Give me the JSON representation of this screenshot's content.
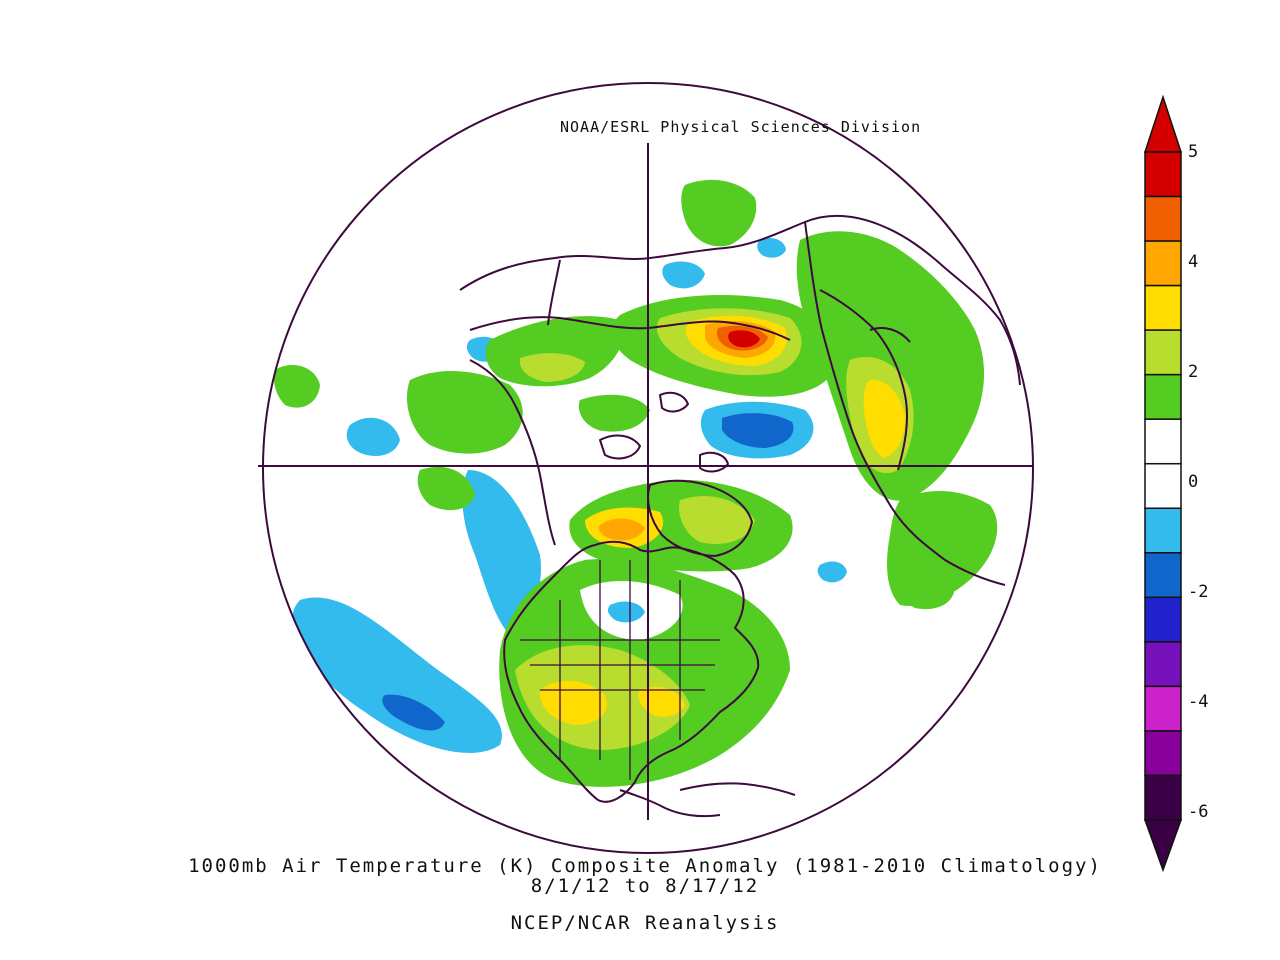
{
  "credit": "NOAA/ESRL Physical Sciences Division",
  "caption": {
    "line1": "1000mb Air Temperature (K) Composite Anomaly (1981-2010 Climatology)",
    "line2": "8/1/12 to 8/17/12",
    "line3": "NCEP/NCAR Reanalysis"
  },
  "colorbar": {
    "labels": [
      "5",
      "4",
      "2",
      "0",
      "-2",
      "-4",
      "-6"
    ],
    "colors": [
      "#d40000",
      "#f06000",
      "#ffa600",
      "#ffdd00",
      "#b8dd2e",
      "#55cc22",
      "#ffffff",
      "#ffffff",
      "#33bbee",
      "#1166cc",
      "#2222cc",
      "#7711bb",
      "#cc22cc",
      "#880099",
      "#3a0045"
    ]
  },
  "map": {
    "projection": "polar-stereographic",
    "land_outline_color": "#3d0a3d",
    "anomaly_colors": {
      "warm_strong": "#d40000",
      "warm_high": "#f06000",
      "warm_mid": "#ffa600",
      "warm_low": "#ffdd00",
      "warm_lower": "#b8dd2e",
      "warm_min": "#55cc22",
      "cool_min": "#33bbee",
      "cool_mid": "#1166cc"
    }
  }
}
